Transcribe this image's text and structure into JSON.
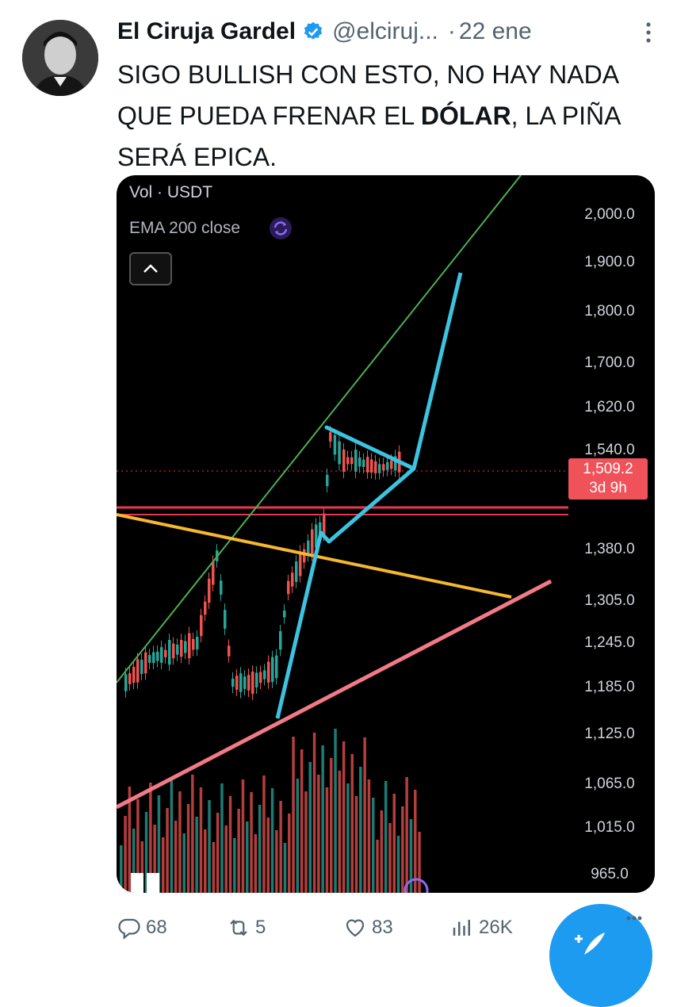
{
  "tweet": {
    "author_name": "El Ciruja Gardel",
    "handle": "@elciruj...",
    "separator": "·",
    "date": "22 ene",
    "text_part1": "SIGO BULLISH CON ESTO, NO HAY NADA QUE PUEDA FRENAR EL ",
    "text_bold": "DÓLAR",
    "text_part2": ", LA PIÑA SERÁ EPICA."
  },
  "chart": {
    "vol_label": "Vol · USDT",
    "ema_label": "EMA 200 close",
    "price_axis": [
      "2,000.0",
      "1,900.0",
      "1,800.0",
      "1,700.0",
      "1,620.0",
      "1,540.0",
      "1,380.0",
      "1,305.0",
      "1,245.0",
      "1,185.0",
      "1,125.0",
      "1,065.0",
      "1,015.0",
      "965.0"
    ],
    "current_price": "1,509.2",
    "countdown": "3d 9h",
    "colors": {
      "up": "#26a69a",
      "down": "#ef5350",
      "trend_green": "#4caf50",
      "cyan": "#3cc3e0",
      "yellow": "#f5b82e",
      "pink": "#f27a86",
      "red_line": "#e53950"
    }
  },
  "actions": {
    "replies": "68",
    "retweets": "5",
    "likes": "83",
    "views": "26K"
  },
  "icons": [
    "verified-badge-icon",
    "more-icon",
    "reply-icon",
    "retweet-icon",
    "like-icon",
    "views-icon",
    "compose-icon"
  ]
}
